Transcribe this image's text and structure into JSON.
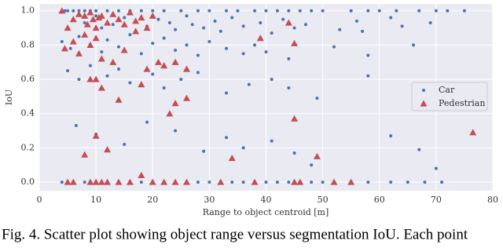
{
  "chart_data": {
    "type": "scatter",
    "x_label": "Range to object centroid [m]",
    "y_label": "IoU",
    "xlim": [
      0,
      80
    ],
    "ylim": [
      -0.05,
      1.04
    ],
    "xticks": [
      0,
      10,
      20,
      30,
      40,
      50,
      60,
      70,
      80
    ],
    "yticks": [
      {
        "value": 0,
        "label": "0.0"
      },
      {
        "value": 0.2,
        "label": "0.2"
      },
      {
        "value": 0.4,
        "label": "0.4"
      },
      {
        "value": 0.6,
        "label": "0.6"
      },
      {
        "value": 0.8,
        "label": "0.8"
      },
      {
        "value": 1.0,
        "label": "1.0"
      }
    ],
    "grid": true,
    "legend": "center right",
    "series": [
      {
        "name": "Car",
        "color": "#4c72b0",
        "marker": "circle",
        "x": [
          4.5,
          5,
          6,
          7,
          8,
          9,
          10,
          12,
          14,
          16,
          18,
          20,
          22,
          25,
          28,
          30,
          33,
          35,
          38,
          40,
          42,
          44,
          46,
          48,
          50,
          55,
          58,
          60,
          63,
          67,
          70,
          72,
          75,
          6,
          8,
          10,
          11,
          13,
          15,
          17,
          19,
          21,
          23,
          24,
          26,
          27,
          29,
          31,
          32,
          34,
          36,
          39,
          41,
          43,
          45,
          47,
          53,
          56,
          57,
          62,
          64,
          69,
          4,
          5.5,
          7,
          9,
          11,
          12,
          14,
          16,
          18,
          20,
          22,
          24,
          26,
          28,
          30,
          33,
          36,
          38,
          40,
          44,
          52,
          58,
          66,
          5,
          7,
          9,
          12,
          14,
          16,
          20,
          22,
          25,
          28,
          33,
          37,
          41,
          44,
          49,
          58,
          6.5,
          10,
          15,
          19,
          24,
          29,
          33,
          36,
          41,
          45,
          48,
          62,
          67,
          70,
          4,
          5,
          6,
          8,
          9,
          10,
          12,
          14,
          16,
          18,
          20,
          22,
          24,
          26,
          28,
          30,
          32,
          34,
          36,
          38,
          40,
          42,
          44,
          46,
          48,
          50,
          52,
          55,
          58,
          62,
          65,
          68,
          71
        ],
        "y": [
          1,
          1,
          1,
          1,
          1,
          1,
          1,
          1,
          1,
          1,
          1,
          1,
          1,
          1,
          1,
          1,
          1,
          1,
          1,
          1,
          1,
          1,
          1,
          1,
          1,
          1,
          1,
          1,
          1,
          1,
          1,
          1,
          1,
          0.95,
          0.93,
          0.97,
          0.9,
          0.92,
          0.96,
          0.94,
          0.91,
          0.95,
          0.93,
          0.89,
          0.97,
          0.92,
          0.9,
          0.94,
          0.88,
          0.96,
          0.91,
          0.93,
          0.87,
          0.95,
          0.9,
          0.92,
          0.89,
          0.94,
          0.88,
          0.96,
          0.91,
          0.93,
          0.82,
          0.78,
          0.85,
          0.8,
          0.76,
          0.83,
          0.79,
          0.86,
          0.75,
          0.81,
          0.84,
          0.77,
          0.8,
          0.74,
          0.82,
          0.78,
          0.75,
          0.8,
          0.76,
          0.72,
          0.79,
          0.74,
          0.8,
          0.65,
          0.6,
          0.68,
          0.62,
          0.66,
          0.58,
          0.63,
          0.55,
          0.6,
          0.64,
          0.52,
          0.57,
          0.6,
          0.55,
          0.49,
          0.62,
          0.33,
          0.28,
          0.22,
          0.35,
          0.3,
          0.18,
          0.26,
          0.2,
          0.24,
          0.17,
          0.1,
          0.27,
          0.19,
          0.08,
          0,
          0,
          0,
          0,
          0,
          0,
          0,
          0,
          0,
          0,
          0,
          0,
          0,
          0,
          0,
          0,
          0,
          0,
          0,
          0,
          0,
          0,
          0,
          0,
          0,
          0,
          0,
          0,
          0,
          0,
          0,
          0,
          0
        ]
      },
      {
        "name": "Pedestrian",
        "color": "#c44e52",
        "marker": "triangle",
        "x": [
          4,
          5,
          6,
          7,
          8,
          8.5,
          9,
          9.5,
          10,
          10.5,
          11,
          12,
          13,
          14,
          15,
          16,
          17,
          18,
          19,
          20,
          4.5,
          6,
          7,
          8,
          9,
          10,
          11,
          13,
          15,
          17,
          19,
          21,
          22,
          24,
          26,
          9,
          10,
          11,
          14,
          18,
          23,
          24,
          26,
          39,
          44,
          45,
          8,
          10,
          12,
          45,
          49,
          34,
          76.5,
          5,
          6,
          9,
          10,
          11,
          12,
          14,
          16,
          18,
          20,
          22,
          24,
          26,
          32,
          38,
          45,
          46,
          52,
          55
        ],
        "y": [
          1,
          0.9,
          0.95,
          0.98,
          0.97,
          0.92,
          0.99,
          0.95,
          0.9,
          0.96,
          0.97,
          0.93,
          0.98,
          0.95,
          0.92,
          0.99,
          0.94,
          0.96,
          0.9,
          0.97,
          0.78,
          0.82,
          0.75,
          0.86,
          0.8,
          0.84,
          0.72,
          0.7,
          0.77,
          0.88,
          0.66,
          0.7,
          0.68,
          0.7,
          0.66,
          0.6,
          0.6,
          0.55,
          0.48,
          0.57,
          0.4,
          0.46,
          0.49,
          0.84,
          0.93,
          0.81,
          0.16,
          0.27,
          0.19,
          0.37,
          0.15,
          0.14,
          0.29,
          0,
          0,
          0,
          0,
          0,
          0,
          0,
          0,
          0.04,
          0,
          0,
          0,
          0,
          0,
          0,
          0,
          0,
          0,
          0
        ]
      }
    ]
  },
  "caption": "Fig. 4.  Scatter plot showing object range versus segmentation IoU. Each point"
}
